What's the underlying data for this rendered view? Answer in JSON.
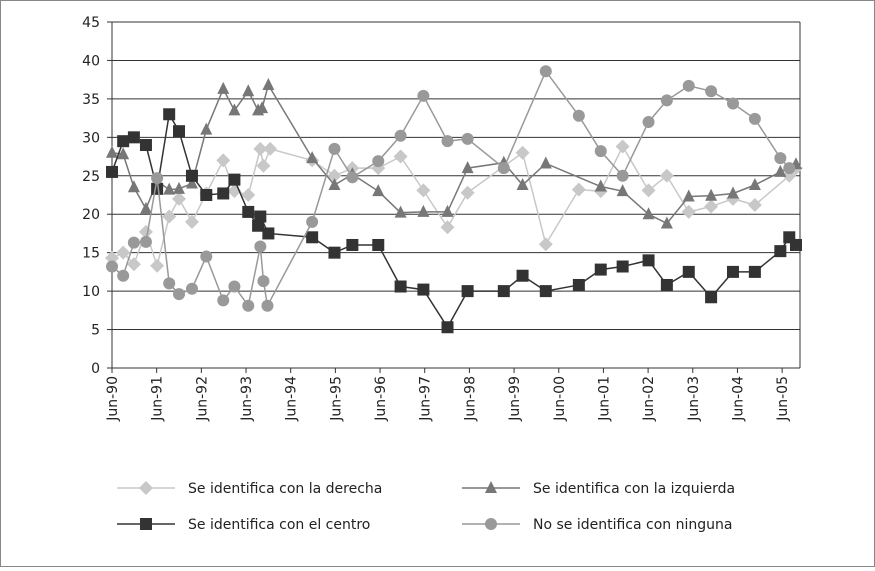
{
  "chart_data": {
    "type": "line",
    "xlim": [
      1990.5,
      2005.9
    ],
    "xticks": [
      {
        "value": 1990.5,
        "label": "Jun-90"
      },
      {
        "value": 1991.5,
        "label": "Jun-91"
      },
      {
        "value": 1992.5,
        "label": "Jun-92"
      },
      {
        "value": 1993.5,
        "label": "Jun-93"
      },
      {
        "value": 1994.5,
        "label": "Jun-94"
      },
      {
        "value": 1995.5,
        "label": "Jun-95"
      },
      {
        "value": 1996.5,
        "label": "Jun-96"
      },
      {
        "value": 1997.5,
        "label": "Jun-97"
      },
      {
        "value": 1998.5,
        "label": "Jun-98"
      },
      {
        "value": 1999.5,
        "label": "Jun-99"
      },
      {
        "value": 2000.5,
        "label": "Jun-00"
      },
      {
        "value": 2001.5,
        "label": "Jun-01"
      },
      {
        "value": 2002.5,
        "label": "Jun-02"
      },
      {
        "value": 2003.5,
        "label": "Jun-03"
      },
      {
        "value": 2004.5,
        "label": "Jun-04"
      },
      {
        "value": 2005.5,
        "label": "Jun-05"
      }
    ],
    "ylim": [
      0,
      45
    ],
    "yticks": [
      0,
      5,
      10,
      15,
      20,
      25,
      30,
      35,
      40,
      45
    ],
    "grid": true,
    "series": [
      {
        "name": "Se identifica con la derecha",
        "color": "#c8c8c8",
        "marker": "diamond",
        "x": [
          1990.5,
          1990.75,
          1990.99,
          1991.26,
          1991.51,
          1991.78,
          1992.0,
          1992.29,
          1992.61,
          1992.99,
          1993.24,
          1993.55,
          1993.82,
          1993.89,
          1994.04,
          1994.98,
          1995.48,
          1995.88,
          1996.46,
          1996.96,
          1997.47,
          1998.01,
          1998.46,
          1999.69,
          2000.21,
          2000.95,
          2001.44,
          2001.93,
          2002.51,
          2002.92,
          2003.41,
          2003.91,
          2004.4,
          2004.89,
          2005.66,
          2005.81
        ],
        "values": [
          14.3,
          15,
          13.5,
          17.7,
          13.3,
          19.7,
          22,
          19,
          22.7,
          27,
          23,
          22.5,
          28.5,
          26.3,
          28.5,
          27,
          25,
          26,
          26,
          27.5,
          23.1,
          18.3,
          22.8,
          28,
          16.1,
          23.2,
          23,
          28.8,
          23.1,
          25,
          20.3,
          21,
          22,
          21.2,
          25,
          26
        ]
      },
      {
        "name": "Se identifica con la izquierda",
        "color": "#777777",
        "marker": "triangle",
        "x": [
          1990.5,
          1990.75,
          1990.99,
          1991.26,
          1991.51,
          1991.78,
          1992.0,
          1992.29,
          1992.61,
          1992.99,
          1993.24,
          1993.55,
          1993.77,
          1993.86,
          1994.0,
          1994.98,
          1995.48,
          1995.88,
          1996.46,
          1996.96,
          1997.47,
          1998.01,
          1998.46,
          1999.27,
          1999.69,
          2000.21,
          2001.44,
          2001.93,
          2002.51,
          2002.92,
          2003.41,
          2003.91,
          2004.4,
          2004.89,
          2005.46,
          2005.81
        ],
        "values": [
          28,
          27.8,
          23.5,
          20.7,
          24.3,
          23.2,
          23.3,
          24,
          31,
          36.3,
          33.5,
          36,
          33.5,
          33.8,
          36.8,
          27.3,
          23.8,
          25.2,
          23,
          20.2,
          20.3,
          20.3,
          26,
          26.7,
          23.8,
          26.6,
          23.6,
          23,
          20,
          18.8,
          22.3,
          22.4,
          22.7,
          23.8,
          25.5,
          26.5
        ]
      },
      {
        "name": "Se identifica con el centro",
        "color": "#333333",
        "marker": "square",
        "x": [
          1990.5,
          1990.75,
          1990.99,
          1991.26,
          1991.51,
          1991.78,
          1992.0,
          1992.29,
          1992.61,
          1992.99,
          1993.24,
          1993.55,
          1993.77,
          1993.82,
          1994.0,
          1994.98,
          1995.48,
          1995.88,
          1996.46,
          1996.96,
          1997.47,
          1998.01,
          1998.46,
          1999.27,
          1999.69,
          2000.21,
          2000.95,
          2001.44,
          2001.93,
          2002.51,
          2002.92,
          2003.41,
          2003.91,
          2004.4,
          2004.89,
          2005.46,
          2005.66,
          2005.81
        ],
        "values": [
          25.5,
          29.5,
          30,
          29,
          23.3,
          33,
          30.8,
          25,
          22.5,
          22.7,
          24.5,
          20.3,
          18.5,
          19.7,
          17.5,
          17,
          15,
          16,
          16,
          10.6,
          10.2,
          5.3,
          10,
          10,
          12,
          10,
          10.8,
          12.8,
          13.2,
          14,
          10.8,
          12.5,
          9.2,
          12.5,
          12.5,
          15.2,
          17,
          16
        ]
      },
      {
        "name": "No se identifica con ninguna",
        "color": "#999999",
        "marker": "circle",
        "x": [
          1990.5,
          1990.75,
          1990.99,
          1991.26,
          1991.51,
          1991.78,
          1992.0,
          1992.29,
          1992.61,
          1992.99,
          1993.24,
          1993.55,
          1993.82,
          1993.89,
          1993.98,
          1994.98,
          1995.48,
          1995.88,
          1996.46,
          1996.96,
          1997.47,
          1998.01,
          1998.46,
          1999.27,
          2000.21,
          2000.95,
          2001.44,
          2001.93,
          2002.51,
          2002.92,
          2003.41,
          2003.91,
          2004.4,
          2004.89,
          2005.46,
          2005.66
        ],
        "values": [
          13.2,
          12,
          16.3,
          16.4,
          24.7,
          11,
          9.6,
          10.3,
          14.5,
          8.8,
          10.6,
          8.1,
          15.8,
          11.3,
          8.1,
          19,
          28.5,
          24.8,
          26.9,
          30.2,
          35.4,
          29.5,
          29.8,
          26,
          38.6,
          32.8,
          28.2,
          25,
          32,
          34.8,
          36.7,
          36,
          34.4,
          32.4,
          27.3,
          26
        ]
      }
    ]
  }
}
